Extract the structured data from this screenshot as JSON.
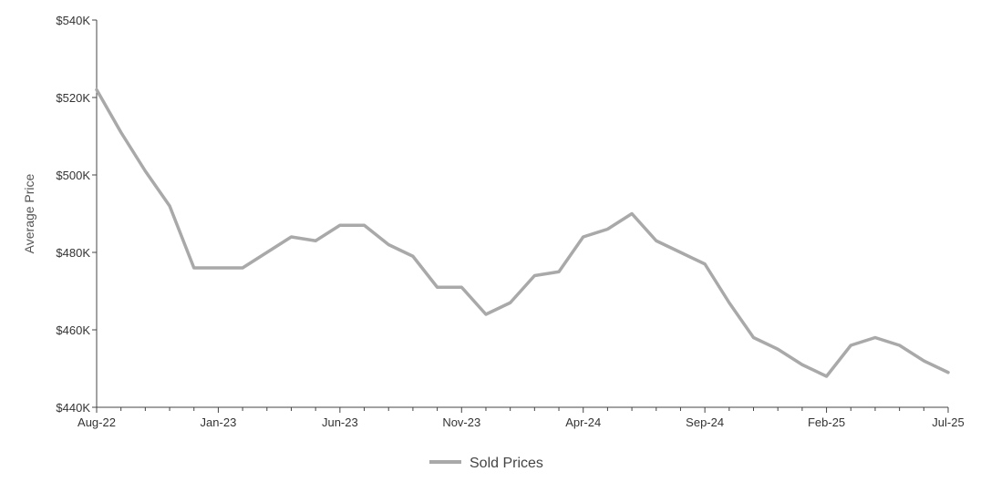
{
  "chart_data": {
    "type": "line",
    "title": "",
    "xlabel": "",
    "ylabel": "Average Price",
    "ylim": [
      440000,
      540000
    ],
    "y_ticks": [
      440000,
      460000,
      480000,
      500000,
      520000,
      540000
    ],
    "y_tick_labels": [
      "$440K",
      "$460K",
      "$480K",
      "$500K",
      "$520K",
      "$540K"
    ],
    "x": [
      "Aug-22",
      "Sep-22",
      "Oct-22",
      "Nov-22",
      "Dec-22",
      "Jan-23",
      "Feb-23",
      "Mar-23",
      "Apr-23",
      "May-23",
      "Jun-23",
      "Jul-23",
      "Aug-23",
      "Sep-23",
      "Oct-23",
      "Nov-23",
      "Dec-23",
      "Jan-24",
      "Feb-24",
      "Mar-24",
      "Apr-24",
      "May-24",
      "Jun-24",
      "Jul-24",
      "Aug-24",
      "Sep-24",
      "Oct-24",
      "Nov-24",
      "Dec-24",
      "Jan-25",
      "Feb-25",
      "Mar-25",
      "Apr-25",
      "May-25",
      "Jun-25",
      "Jul-25"
    ],
    "x_tick_labels": [
      "Aug-22",
      "Jan-23",
      "Jun-23",
      "Nov-23",
      "Apr-24",
      "Sep-24",
      "Feb-25",
      "Jul-25"
    ],
    "grid": false,
    "legend_position": "bottom",
    "series": [
      {
        "name": "Sold Prices",
        "color": "#a9a9a9",
        "values": [
          522000,
          511000,
          501000,
          492000,
          476000,
          476000,
          476000,
          480000,
          484000,
          483000,
          487000,
          487000,
          482000,
          479000,
          471000,
          471000,
          464000,
          467000,
          474000,
          475000,
          484000,
          486000,
          490000,
          483000,
          480000,
          477000,
          467000,
          458000,
          455000,
          451000,
          448000,
          456000,
          458000,
          456000,
          452000,
          449000
        ]
      }
    ]
  }
}
